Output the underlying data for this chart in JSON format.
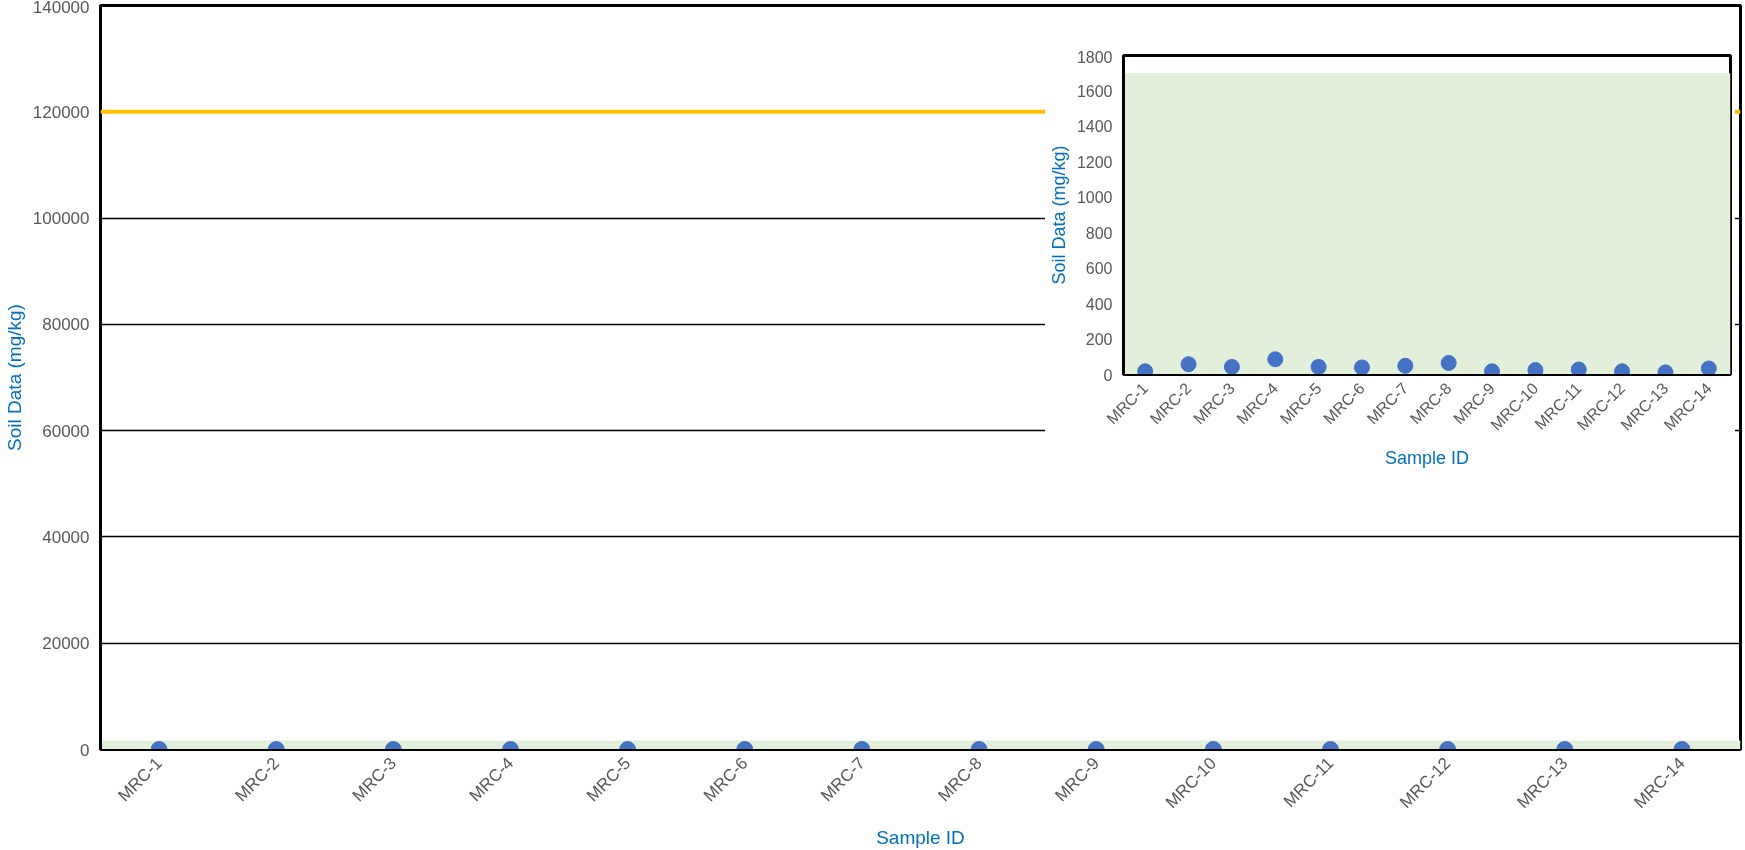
{
  "chart_data": [
    {
      "type": "scatter",
      "categories": [
        "MRC-1",
        "MRC-2",
        "MRC-3",
        "MRC-4",
        "MRC-5",
        "MRC-6",
        "MRC-7",
        "MRC-8",
        "MRC-9",
        "MRC-10",
        "MRC-11",
        "MRC-12",
        "MRC-13",
        "MRC-14"
      ],
      "series": [
        {
          "color": "#4472c4",
          "values": [
            0,
            0,
            0,
            0,
            0,
            0,
            0,
            0,
            0,
            0,
            0,
            0,
            0,
            0
          ]
        }
      ],
      "xlabel": "Sample ID",
      "ylabel": "Soil Data (mg/kg)",
      "ylim": [
        0,
        140000
      ],
      "yticks": [
        0,
        20000,
        40000,
        60000,
        80000,
        100000,
        120000,
        140000
      ],
      "grid": "y",
      "marker": "circle",
      "ref_lines": [
        {
          "axis": "y",
          "value": 120000,
          "color": "#ffc000"
        }
      ],
      "bands": [
        {
          "axis": "y",
          "from": 0,
          "to": 1700,
          "color": "#e2efda"
        }
      ]
    },
    {
      "type": "scatter",
      "categories": [
        "MRC-1",
        "MRC-2",
        "MRC-3",
        "MRC-4",
        "MRC-5",
        "MRC-6",
        "MRC-7",
        "MRC-8",
        "MRC-9",
        "MRC-10",
        "MRC-11",
        "MRC-12",
        "MRC-13",
        "MRC-14"
      ],
      "series": [
        {
          "color": "#4472c4",
          "values": [
            18,
            58,
            43,
            86,
            43,
            40,
            49,
            65,
            18,
            25,
            28,
            18,
            12,
            34
          ]
        }
      ],
      "xlabel": "Sample ID",
      "ylabel": "Soil Data (mg/kg)",
      "ylim": [
        0,
        1800
      ],
      "yticks": [
        0,
        200,
        400,
        600,
        800,
        1000,
        1200,
        1400,
        1600,
        1800
      ],
      "grid": "y",
      "marker": "circle",
      "bands": [
        {
          "axis": "y",
          "from": 0,
          "to": 1700,
          "color": "#e2efda"
        }
      ]
    }
  ]
}
